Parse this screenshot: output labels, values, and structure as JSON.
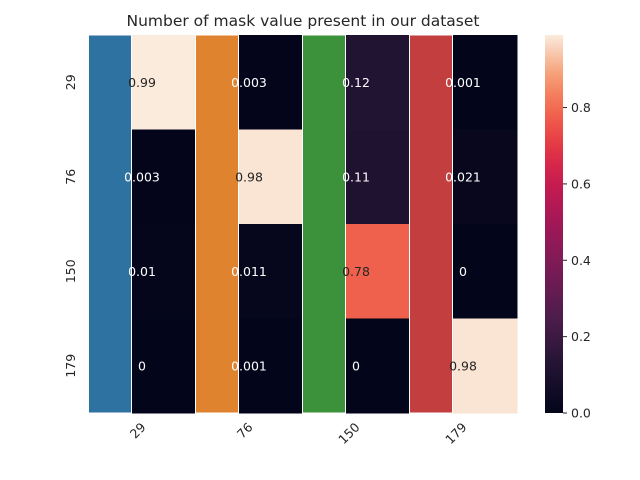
{
  "chart_data": {
    "type": "heatmap",
    "title": "Number of mask value present in our dataset",
    "xlabel": "",
    "ylabel": "",
    "row_labels": [
      "29",
      "76",
      "150",
      "179"
    ],
    "col_labels": [
      "29",
      "76",
      "150",
      "179"
    ],
    "values": [
      [
        0.99,
        0.003,
        0.12,
        0.001
      ],
      [
        0.003,
        0.98,
        0.11,
        0.021
      ],
      [
        0.01,
        0.011,
        0.78,
        0
      ],
      [
        0,
        0.001,
        0,
        0.98
      ]
    ],
    "value_labels": [
      [
        "0.99",
        "0.003",
        "0.12",
        "0.001"
      ],
      [
        "0.003",
        "0.98",
        "0.11",
        "0.021"
      ],
      [
        "0.01",
        "0.011",
        "0.78",
        "0"
      ],
      [
        "0",
        "0.001",
        "0",
        "0.98"
      ]
    ],
    "overlay_bars": {
      "colors": [
        "#2e72a1",
        "#e0832f",
        "#3b923b",
        "#c23e3f"
      ]
    },
    "colorbar": {
      "colormap": "rocket",
      "vmin": 0.0,
      "vmax": 0.99,
      "ticks": [
        "0.0",
        "0.2",
        "0.4",
        "0.6",
        "0.8"
      ],
      "tick_values": [
        0.0,
        0.2,
        0.4,
        0.6,
        0.8
      ]
    },
    "grid": false,
    "legend": "none"
  }
}
